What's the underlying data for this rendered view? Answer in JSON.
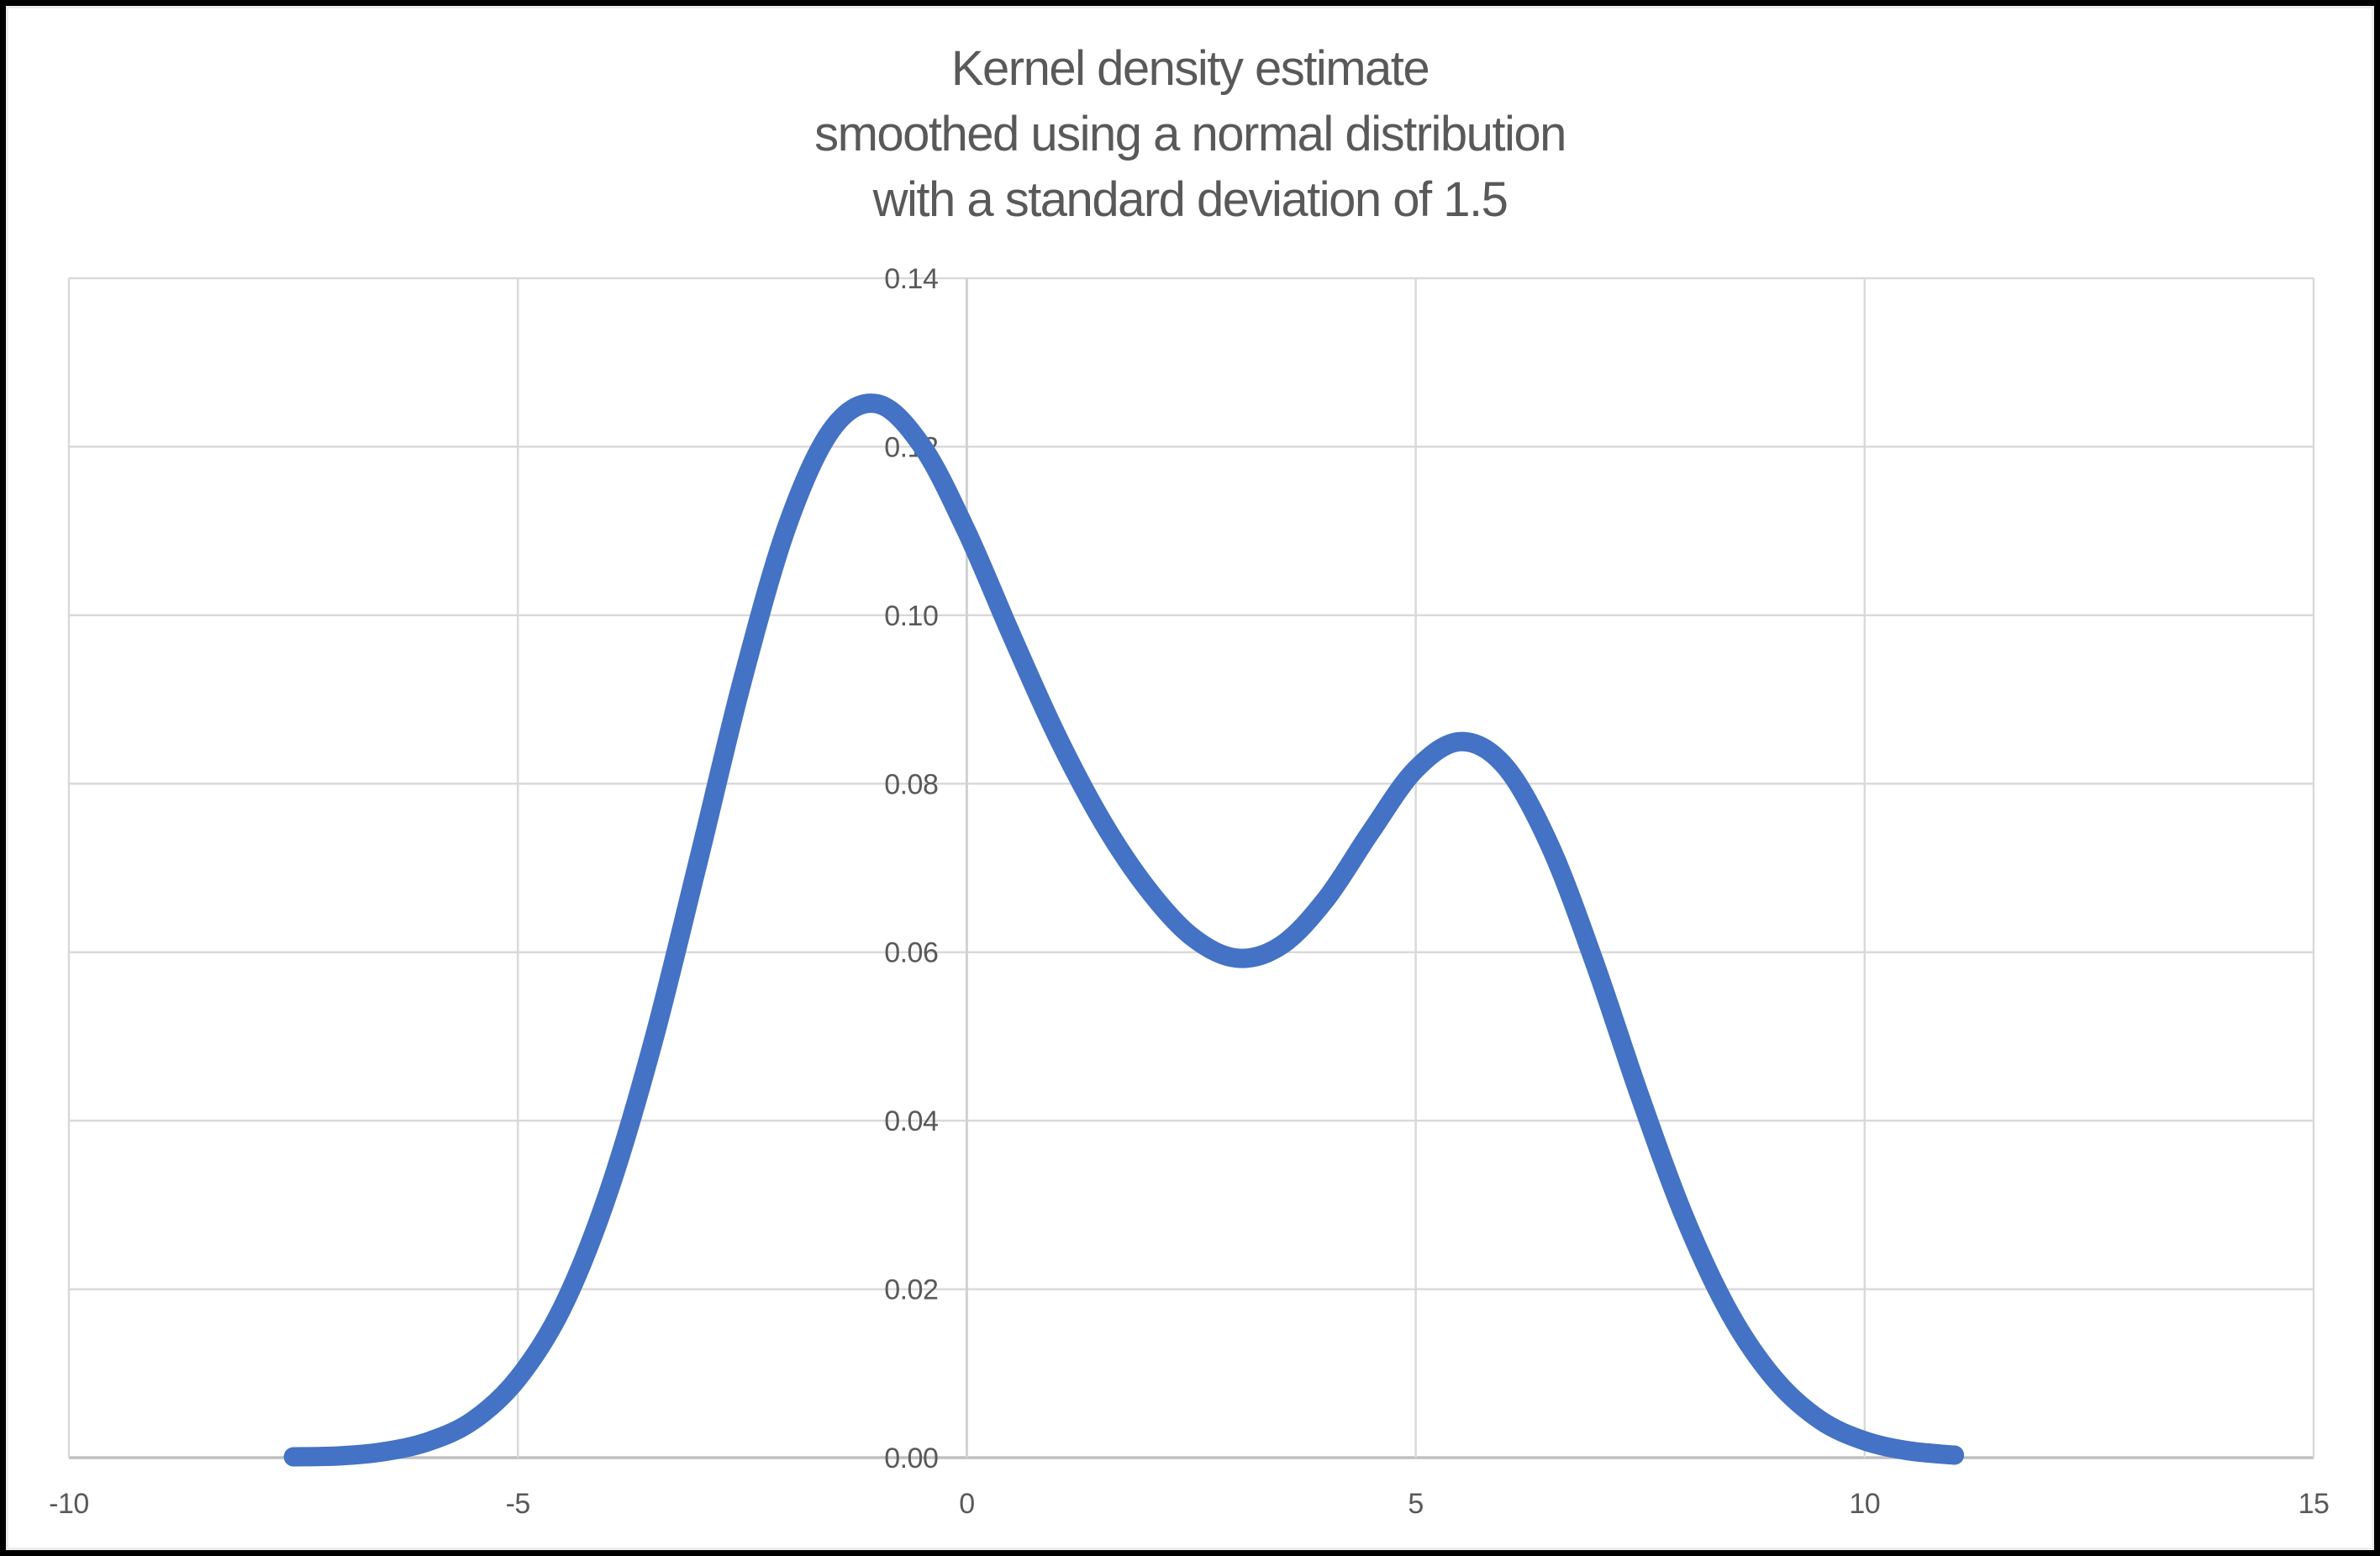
{
  "frame": {
    "border_color": "#000000",
    "background": "#ffffff"
  },
  "title": {
    "lines": [
      "Kernel density estimate",
      "smoothed using a normal distribution",
      "with a standard deviation of 1.5"
    ],
    "color": "#595959"
  },
  "chart_data": {
    "type": "line",
    "title": "Kernel density estimate smoothed using a normal distribution with a standard deviation of 1.5",
    "xlabel": "",
    "ylabel": "",
    "xlim": [
      -10,
      15
    ],
    "ylim": [
      0,
      0.14
    ],
    "x_ticks": [
      -10,
      -5,
      0,
      5,
      10,
      15
    ],
    "x_tick_labels": [
      "-10",
      "-5",
      "0",
      "5",
      "10",
      "15"
    ],
    "y_ticks": [
      0,
      0.02,
      0.04,
      0.06,
      0.08,
      0.1,
      0.12,
      0.14
    ],
    "y_tick_labels": [
      "0.00",
      "0.02",
      "0.04",
      "0.06",
      "0.08",
      "0.10",
      "0.12",
      "0.14"
    ],
    "grid": true,
    "legend_position": "none",
    "axis_label_color": "#595959",
    "gridline_color": "#D9D9D9",
    "axis_line_color": "#BFBFBF",
    "value_axis_line_color": "#D1D1D1",
    "series": [
      {
        "name": "kernel-density-estimate",
        "color": "#4472C4",
        "stroke_width": 23,
        "points": [
          [
            -7.5,
            0.0001
          ],
          [
            -7.0,
            0.0002
          ],
          [
            -6.5,
            0.0007
          ],
          [
            -6.0,
            0.0019
          ],
          [
            -5.5,
            0.0044
          ],
          [
            -5.0,
            0.0094
          ],
          [
            -4.5,
            0.0179
          ],
          [
            -4.0,
            0.0312
          ],
          [
            -3.5,
            0.0491
          ],
          [
            -3.0,
            0.0704
          ],
          [
            -2.5,
            0.0922
          ],
          [
            -2.0,
            0.1106
          ],
          [
            -1.5,
            0.1221
          ],
          [
            -1.0,
            0.1251
          ],
          [
            -0.5,
            0.1201
          ],
          [
            0.0,
            0.1099
          ],
          [
            0.5,
            0.0976
          ],
          [
            1.0,
            0.0858
          ],
          [
            1.5,
            0.0757
          ],
          [
            2.0,
            0.0677
          ],
          [
            2.5,
            0.0619
          ],
          [
            3.0,
            0.0593
          ],
          [
            3.5,
            0.0608
          ],
          [
            4.0,
            0.0663
          ],
          [
            4.5,
            0.0743
          ],
          [
            5.0,
            0.0817
          ],
          [
            5.5,
            0.085
          ],
          [
            6.0,
            0.082
          ],
          [
            6.5,
            0.0725
          ],
          [
            7.0,
            0.0585
          ],
          [
            7.5,
            0.0428
          ],
          [
            8.0,
            0.0284
          ],
          [
            8.5,
            0.0171
          ],
          [
            9.0,
            0.0093
          ],
          [
            9.5,
            0.0045
          ],
          [
            10.0,
            0.002
          ],
          [
            10.5,
            0.0008
          ],
          [
            11.0,
            0.0003
          ]
        ]
      }
    ],
    "features": {
      "left_peak": {
        "x": -1.0,
        "y": 0.125
      },
      "valley": {
        "x": 3.1,
        "y": 0.059
      },
      "right_peak": {
        "x": 5.5,
        "y": 0.085
      }
    }
  }
}
